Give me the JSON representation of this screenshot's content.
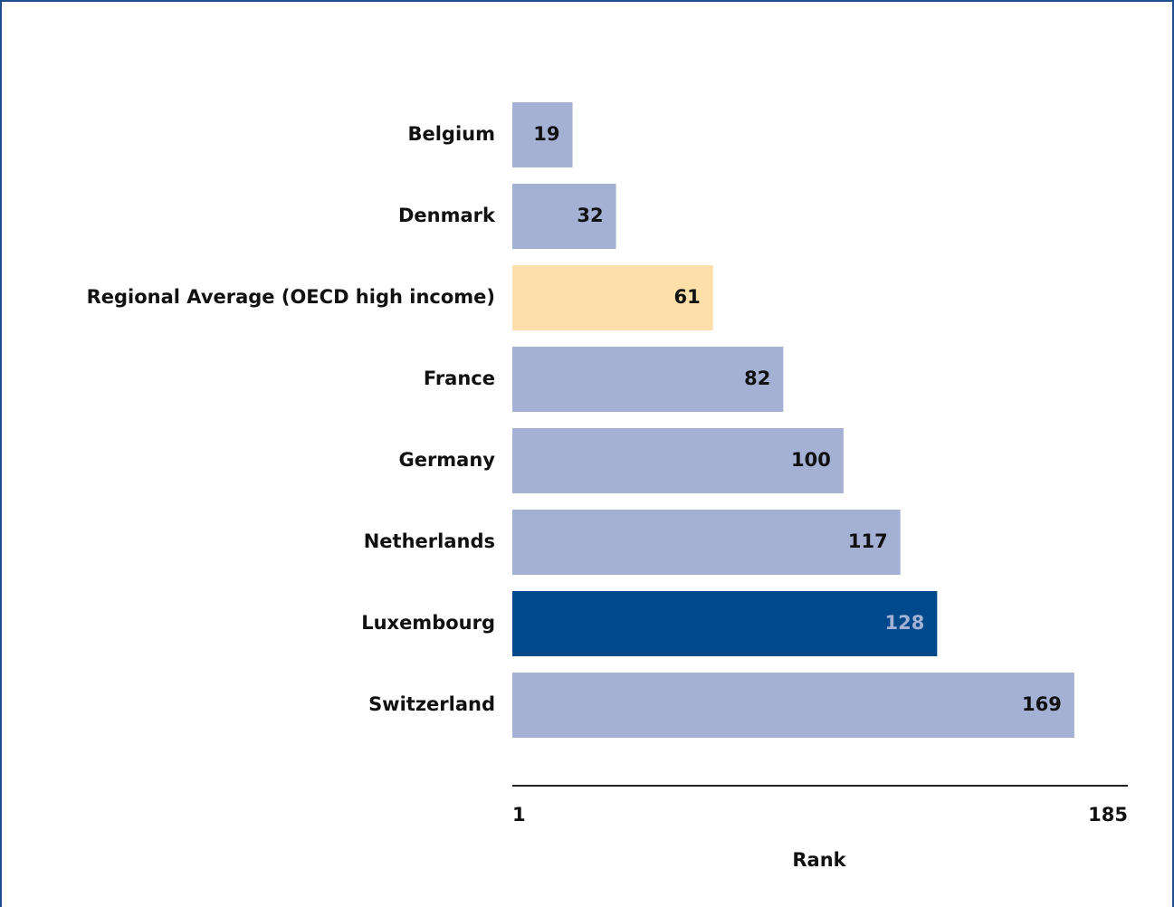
{
  "chart_data": {
    "type": "hbar",
    "categories": [
      "Belgium",
      "Denmark",
      "Regional Average (OECD high income)",
      "France",
      "Germany",
      "Netherlands",
      "Luxembourg",
      "Switzerland"
    ],
    "values": [
      19,
      32,
      61,
      82,
      100,
      117,
      128,
      169
    ],
    "colors": [
      "#a4b1d4",
      "#a4b1d4",
      "#fde0a9",
      "#a4b1d4",
      "#a4b1d4",
      "#a4b1d4",
      "#004a8c",
      "#a4b1d4"
    ],
    "xlim": [
      1,
      185
    ],
    "xticks": [
      1,
      185
    ],
    "xlabel": "Rank",
    "grid": false
  }
}
